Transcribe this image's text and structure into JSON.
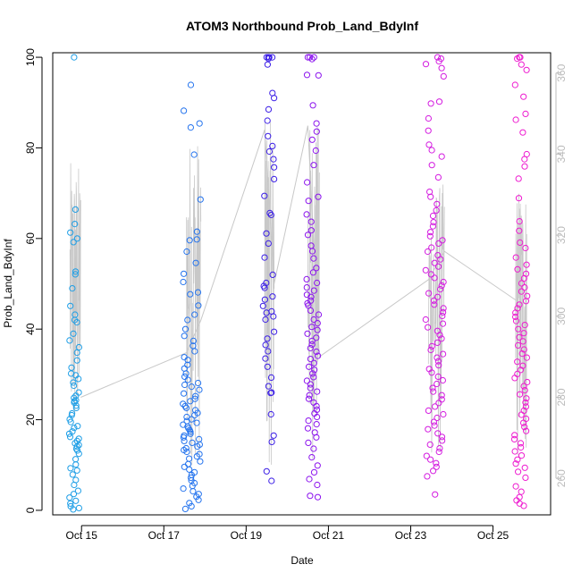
{
  "chart_data": {
    "type": "scatter",
    "title": "ATOM3 Northbound Prob_Land_BdyInf",
    "xlabel": "Date",
    "ylabel": "Prob_Land_BdyInf",
    "xlim": [
      14.3,
      26.4
    ],
    "ylim": [
      -1,
      101
    ],
    "y_ticks": [
      0,
      20,
      40,
      60,
      80,
      100
    ],
    "x_ticks": [
      {
        "value": 15,
        "label": "Oct 15"
      },
      {
        "value": 17,
        "label": "Oct 17"
      },
      {
        "value": 19,
        "label": "Oct 19"
      },
      {
        "value": 21,
        "label": "Oct 21"
      },
      {
        "value": 23,
        "label": "Oct 23"
      },
      {
        "value": 25,
        "label": "Oct 25"
      }
    ],
    "secondary_axis": {
      "ylim": [
        251,
        365
      ],
      "ticks": [
        260,
        280,
        300,
        320,
        340,
        360
      ],
      "color": "#bbbbbb"
    },
    "line_series_color": "#c8c8c8",
    "marker": "open-circle",
    "clusters": [
      {
        "x_center": 14.82,
        "x_spread": 0.12,
        "color": "#1e9ee6",
        "y": [
          100,
          66.4,
          63.2,
          61.3,
          60,
          59.2,
          52.7,
          52.1,
          49,
          45.1,
          43.2,
          42,
          41.5,
          39,
          37.5,
          36,
          34.8,
          33.1,
          31.5,
          30.2,
          29.8,
          29,
          28.2,
          27.5,
          26,
          25.3,
          24.8,
          24.3,
          24.1,
          23.8,
          23.1,
          22.6,
          21.4,
          21,
          20.1,
          19.5,
          18.6,
          18.2,
          17.4,
          16.9,
          16.2,
          15.8,
          15.3,
          14.8,
          14.4,
          14.1,
          13.6,
          13.2,
          12.5,
          11.3,
          10.1,
          9.3,
          8.8,
          7.9,
          6.7,
          5.6,
          4.3,
          3.6,
          2.8,
          2.1,
          1.5,
          0.9,
          0.5,
          0.2
        ]
      },
      {
        "x_center": 17.68,
        "x_spread": 0.22,
        "color": "#2574ee",
        "y": [
          93.9,
          88.2,
          85.4,
          84.5,
          78.5,
          68.6,
          61.5,
          59.8,
          59.6,
          57.1,
          54.6,
          52.2,
          50.4,
          48.1,
          47.7,
          45.2,
          43.2,
          42,
          40,
          38.5,
          37.4,
          36.3,
          35.1,
          33.8,
          33.2,
          32.1,
          31.3,
          30.2,
          29.5,
          28.8,
          28.1,
          27.7,
          27.3,
          26.6,
          25.8,
          25.2,
          24.6,
          24.1,
          23.5,
          23,
          22.6,
          22.1,
          21.5,
          21,
          20.6,
          20.1,
          19.7,
          19.3,
          18.9,
          18.5,
          18.1,
          17.7,
          17.3,
          16.9,
          16.5,
          16.1,
          15.7,
          15.3,
          14.9,
          14.5,
          14.1,
          13.7,
          13.3,
          12.9,
          12.4,
          11.9,
          11.4,
          10.8,
          10.2,
          9.6,
          9,
          8.4,
          7.8,
          7.2,
          6.6,
          6,
          5.4,
          4.8,
          4.2,
          3.6,
          3,
          2.3,
          1.6,
          0.9,
          0.3
        ]
      },
      {
        "x_center": 19.55,
        "x_spread": 0.14,
        "color": "#3c1fe6",
        "y": [
          100,
          100,
          100,
          100,
          99.7,
          98.4,
          92.1,
          91,
          88.5,
          86,
          82.6,
          80.4,
          79.2,
          77.5,
          75.7,
          73.1,
          69.4,
          65.6,
          65.2,
          61.1,
          58.9,
          55.8,
          52,
          50.2,
          49.5,
          49.1,
          47.2,
          46.5,
          45.1,
          43.9,
          43.6,
          42.8,
          42.1,
          39.4,
          37.9,
          36.5,
          35.1,
          33.5,
          31.7,
          29.3,
          27.4,
          26,
          25.9,
          21.2,
          16.5,
          15.1,
          8.6,
          6.5
        ]
      },
      {
        "x_center": 20.62,
        "x_spread": 0.15,
        "color": "#8c14ee",
        "y": [
          100,
          100,
          100,
          99.6,
          96.1,
          96,
          89.4,
          85.4,
          83.6,
          81.8,
          79.4,
          76.2,
          72.4,
          69.2,
          68.3,
          65.3,
          63.7,
          61.8,
          60.8,
          58.4,
          57.2,
          55.6,
          53.5,
          52.5,
          51,
          50.2,
          49.2,
          48.5,
          47.6,
          47.1,
          46.3,
          45.7,
          45.2,
          44.1,
          43.2,
          42.1,
          41.3,
          40.5,
          39.8,
          39,
          38.1,
          37.4,
          36.6,
          35.8,
          35,
          34.1,
          33.4,
          32.5,
          31.7,
          31,
          30.2,
          29.4,
          28.6,
          27.8,
          27,
          26.2,
          25.4,
          24.6,
          23.8,
          23,
          22.2,
          21.4,
          20.6,
          19.8,
          19,
          18.1,
          17.2,
          16.1,
          14.9,
          13.6,
          11.7,
          9.9,
          8.4,
          6.9,
          5.6,
          3.2,
          2.9
        ]
      },
      {
        "x_center": 23.58,
        "x_spread": 0.22,
        "color": "#d41ce0",
        "y": [
          100,
          99.7,
          99.1,
          98.5,
          97.6,
          95.8,
          90.2,
          89.8,
          86.5,
          83.8,
          80.7,
          79.5,
          78.1,
          76.2,
          73.5,
          70.3,
          69.2,
          67.6,
          66.2,
          65,
          63.6,
          62.7,
          61.4,
          60.5,
          59.6,
          58.9,
          58,
          57.1,
          56.3,
          55.4,
          54.6,
          53.8,
          53,
          52.1,
          51.3,
          50.4,
          49.6,
          48.8,
          47.9,
          47.1,
          46.3,
          45.4,
          44.6,
          43.7,
          42.9,
          42.1,
          41.2,
          40.4,
          39.6,
          38.7,
          37.9,
          37,
          36.2,
          35.4,
          34.5,
          33.7,
          32.9,
          32,
          31.2,
          30.4,
          29.5,
          28.7,
          27.9,
          27,
          26.2,
          25.4,
          24.5,
          23.7,
          22.9,
          22,
          21.2,
          20.4,
          19.5,
          18.7,
          17.9,
          17,
          16.2,
          15.4,
          14.5,
          13.7,
          12.9,
          12,
          11.2,
          10.4,
          9.6,
          8.7,
          7.5,
          3.5
        ]
      },
      {
        "x_center": 25.68,
        "x_spread": 0.16,
        "color": "#ee1cd0",
        "y": [
          100,
          100,
          99.7,
          98.4,
          97.2,
          93.9,
          91.3,
          87.5,
          86.2,
          83.4,
          78.6,
          77.5,
          75.9,
          73.2,
          68.9,
          63.8,
          61.7,
          59.1,
          57.9,
          55.8,
          54.2,
          53.2,
          52.2,
          51.2,
          50.1,
          49.2,
          48.3,
          47.3,
          46.2,
          45.4,
          44.6,
          43.6,
          42.7,
          41.8,
          40.9,
          40,
          39.1,
          38.2,
          37.3,
          36.4,
          35.5,
          34.6,
          33.7,
          32.8,
          31.9,
          31,
          30.1,
          29.2,
          28.3,
          27.4,
          26.5,
          25.6,
          24.7,
          23.8,
          22.9,
          22,
          21.1,
          20.2,
          19.3,
          18.4,
          17.5,
          16.6,
          15.7,
          14.8,
          13.9,
          13,
          12.1,
          11.2,
          10.3,
          9.4,
          8.5,
          7.2,
          5.3,
          4.1,
          2.9,
          2.2,
          1.5,
          1
        ]
      }
    ],
    "line_bands": [
      {
        "x0": 14.72,
        "x1": 14.98,
        "y2_low": 263,
        "y2_high": 338
      },
      {
        "x0": 17.55,
        "x1": 17.9,
        "y2_low": 262,
        "y2_high": 345
      },
      {
        "x0": 19.45,
        "x1": 19.68,
        "y2_low": 262,
        "y2_high": 348
      },
      {
        "x0": 20.5,
        "x1": 20.78,
        "y2_low": 263,
        "y2_high": 348
      },
      {
        "x0": 23.43,
        "x1": 23.82,
        "y2_low": 262,
        "y2_high": 333
      },
      {
        "x0": 25.55,
        "x1": 25.82,
        "y2_low": 262,
        "y2_high": 333
      }
    ],
    "line_connectors": [
      {
        "x": 14.98,
        "y2": 280
      },
      {
        "x": 17.55,
        "y2": 291
      },
      {
        "x": 17.9,
        "y2": 299
      },
      {
        "x": 19.45,
        "y2": 346
      },
      {
        "x": 19.68,
        "y2": 308
      },
      {
        "x": 20.5,
        "y2": 347
      },
      {
        "x": 20.78,
        "y2": 290
      },
      {
        "x": 23.43,
        "y2": 309
      },
      {
        "x": 23.82,
        "y2": 316
      },
      {
        "x": 25.55,
        "y2": 304
      }
    ]
  }
}
